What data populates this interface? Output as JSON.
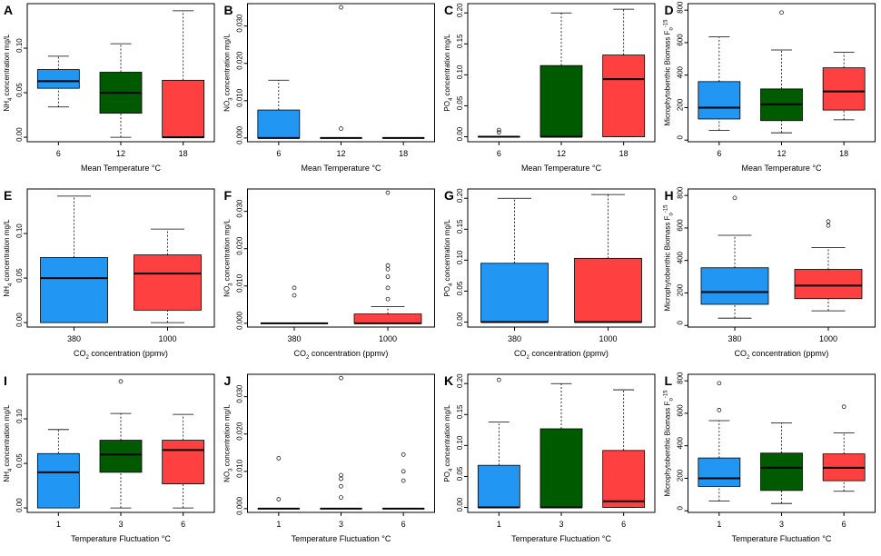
{
  "colors": {
    "blue": "#2196f3",
    "green": "#005a00",
    "red": "#ff4040"
  },
  "chart_data": [
    {
      "panel": "A",
      "type": "box",
      "xlabel": "Mean Temperature °C",
      "ylabel": "NH4 concentration mg/L",
      "ylim": [
        -0.005,
        0.15
      ],
      "yticks": [
        0,
        0.05,
        0.1
      ],
      "ytick_labels": [
        "0.00",
        "0.05",
        "0.10"
      ],
      "categories": [
        "6",
        "12",
        "18"
      ],
      "boxes": [
        {
          "color": "blue",
          "whisker_low": 0.034,
          "q1": 0.055,
          "median": 0.063,
          "q3": 0.076,
          "whisker_high": 0.091,
          "outliers": []
        },
        {
          "color": "green",
          "whisker_low": 0.0,
          "q1": 0.027,
          "median": 0.05,
          "q3": 0.073,
          "whisker_high": 0.105,
          "outliers": []
        },
        {
          "color": "red",
          "whisker_low": 0.0,
          "q1": 0.0,
          "median": 0.0,
          "q3": 0.064,
          "whisker_high": 0.142,
          "outliers": []
        }
      ]
    },
    {
      "panel": "B",
      "type": "box",
      "xlabel": "Mean Temperature °C",
      "ylabel": "NO3 concentration mg/L",
      "ylim": [
        -0.001,
        0.036
      ],
      "yticks": [
        0,
        0.01,
        0.02,
        0.03
      ],
      "ytick_labels": [
        "0.000",
        "0.010",
        "0.020",
        "0.030"
      ],
      "categories": [
        "6",
        "12",
        "18"
      ],
      "boxes": [
        {
          "color": "blue",
          "whisker_low": 0.0,
          "q1": 0.0,
          "median": 0.0,
          "q3": 0.0075,
          "whisker_high": 0.0155,
          "outliers": []
        },
        {
          "color": "blue",
          "whisker_low": 0.0,
          "q1": 0.0,
          "median": 0.0,
          "q3": 0.0,
          "whisker_high": 0.0,
          "outliers": [
            0.0025,
            0.035
          ]
        },
        {
          "color": "blue",
          "whisker_low": 0.0,
          "q1": 0.0,
          "median": 0.0,
          "q3": 0.0,
          "whisker_high": 0.0,
          "outliers": []
        }
      ]
    },
    {
      "panel": "C",
      "type": "box",
      "xlabel": "Mean Temperature °C",
      "ylabel": "PO4 concentration mg/L",
      "ylim": [
        -0.008,
        0.215
      ],
      "yticks": [
        0,
        0.05,
        0.1,
        0.15,
        0.2
      ],
      "ytick_labels": [
        "0.00",
        "0.05",
        "0.10",
        "0.15",
        "0.20"
      ],
      "categories": [
        "6",
        "12",
        "18"
      ],
      "boxes": [
        {
          "color": "blue",
          "whisker_low": 0.0,
          "q1": 0.0,
          "median": 0.0,
          "q3": 0.0,
          "whisker_high": 0.0,
          "outliers": [
            0.007,
            0.011
          ]
        },
        {
          "color": "green",
          "whisker_low": 0.0,
          "q1": 0.0,
          "median": 0.0,
          "q3": 0.115,
          "whisker_high": 0.2,
          "outliers": []
        },
        {
          "color": "red",
          "whisker_low": 0.0,
          "q1": 0.0,
          "median": 0.093,
          "q3": 0.132,
          "whisker_high": 0.206,
          "outliers": []
        }
      ]
    },
    {
      "panel": "D",
      "type": "box",
      "xlabel": "Mean Temperature °C",
      "ylabel": "Microphytobenthic Biomass F°-15",
      "ylim": [
        -10,
        840
      ],
      "yticks": [
        0,
        200,
        400,
        600,
        800
      ],
      "ytick_labels": [
        "0",
        "200",
        "400",
        "600",
        "800"
      ],
      "categories": [
        "6",
        "12",
        "18"
      ],
      "boxes": [
        {
          "color": "blue",
          "whisker_low": 60,
          "q1": 130,
          "median": 200,
          "q3": 360,
          "whisker_high": 635,
          "outliers": []
        },
        {
          "color": "green",
          "whisker_low": 45,
          "q1": 120,
          "median": 220,
          "q3": 315,
          "whisker_high": 555,
          "outliers": [
            785
          ]
        },
        {
          "color": "red",
          "whisker_low": 125,
          "q1": 185,
          "median": 300,
          "q3": 445,
          "whisker_high": 540,
          "outliers": []
        }
      ]
    },
    {
      "panel": "E",
      "type": "box",
      "xlabel": "CO2 concentration (ppmv)",
      "ylabel": "NH4 concentration mg/L",
      "ylim": [
        -0.005,
        0.15
      ],
      "yticks": [
        0,
        0.05,
        0.1
      ],
      "ytick_labels": [
        "0.00",
        "0.05",
        "0.10"
      ],
      "categories": [
        "380",
        "1000"
      ],
      "boxes": [
        {
          "color": "blue",
          "whisker_low": 0.0,
          "q1": 0.0,
          "median": 0.05,
          "q3": 0.073,
          "whisker_high": 0.142,
          "outliers": []
        },
        {
          "color": "red",
          "whisker_low": 0.0,
          "q1": 0.014,
          "median": 0.055,
          "q3": 0.076,
          "whisker_high": 0.105,
          "outliers": []
        }
      ]
    },
    {
      "panel": "F",
      "type": "box",
      "xlabel": "CO2 concentration (ppmv)",
      "ylabel": "NO3 concentration mg/L",
      "ylim": [
        -0.001,
        0.036
      ],
      "yticks": [
        0,
        0.01,
        0.02,
        0.03
      ],
      "ytick_labels": [
        "0.000",
        "0.010",
        "0.020",
        "0.030"
      ],
      "categories": [
        "380",
        "1000"
      ],
      "boxes": [
        {
          "color": "blue",
          "whisker_low": 0.0,
          "q1": 0.0,
          "median": 0.0,
          "q3": 0.0,
          "whisker_high": 0.0,
          "outliers": [
            0.0075,
            0.0095
          ]
        },
        {
          "color": "red",
          "whisker_low": 0.0,
          "q1": 0.0,
          "median": 0.0,
          "q3": 0.0025,
          "whisker_high": 0.0045,
          "outliers": [
            0.0065,
            0.0095,
            0.0125,
            0.0145,
            0.0155,
            0.035
          ]
        }
      ]
    },
    {
      "panel": "G",
      "type": "box",
      "xlabel": "CO2 concentration (ppmv)",
      "ylabel": "PO4 concentration mg/L",
      "ylim": [
        -0.008,
        0.215
      ],
      "yticks": [
        0,
        0.05,
        0.1,
        0.15,
        0.2
      ],
      "ytick_labels": [
        "0.00",
        "0.05",
        "0.10",
        "0.15",
        "0.20"
      ],
      "categories": [
        "380",
        "1000"
      ],
      "boxes": [
        {
          "color": "blue",
          "whisker_low": 0.0,
          "q1": 0.0,
          "median": 0.0,
          "q3": 0.095,
          "whisker_high": 0.2,
          "outliers": []
        },
        {
          "color": "red",
          "whisker_low": 0.0,
          "q1": 0.0,
          "median": 0.0,
          "q3": 0.103,
          "whisker_high": 0.206,
          "outliers": []
        }
      ]
    },
    {
      "panel": "H",
      "type": "box",
      "xlabel": "CO2 concentration (ppmv)",
      "ylabel": "Microphytobenthic Biomass F°-15",
      "ylim": [
        -10,
        840
      ],
      "yticks": [
        0,
        200,
        400,
        600,
        800
      ],
      "ytick_labels": [
        "0",
        "200",
        "400",
        "600",
        "800"
      ],
      "categories": [
        "380",
        "1000"
      ],
      "boxes": [
        {
          "color": "blue",
          "whisker_low": 45,
          "q1": 130,
          "median": 205,
          "q3": 355,
          "whisker_high": 555,
          "outliers": [
            785
          ]
        },
        {
          "color": "red",
          "whisker_low": 90,
          "q1": 165,
          "median": 245,
          "q3": 345,
          "whisker_high": 480,
          "outliers": [
            615,
            640
          ]
        }
      ]
    },
    {
      "panel": "I",
      "type": "box",
      "xlabel": "Temperature Fluctuation °C",
      "ylabel": "NH4 concentration mg/L",
      "ylim": [
        -0.005,
        0.15
      ],
      "yticks": [
        0,
        0.05,
        0.1
      ],
      "ytick_labels": [
        "0.00",
        "0.05",
        "0.10"
      ],
      "categories": [
        "1",
        "3",
        "6"
      ],
      "boxes": [
        {
          "color": "blue",
          "whisker_low": 0.0,
          "q1": 0.0,
          "median": 0.04,
          "q3": 0.061,
          "whisker_high": 0.088,
          "outliers": []
        },
        {
          "color": "green",
          "whisker_low": 0.0,
          "q1": 0.04,
          "median": 0.06,
          "q3": 0.076,
          "whisker_high": 0.106,
          "outliers": [
            0.142
          ]
        },
        {
          "color": "red",
          "whisker_low": 0.0,
          "q1": 0.027,
          "median": 0.065,
          "q3": 0.076,
          "whisker_high": 0.105,
          "outliers": []
        }
      ]
    },
    {
      "panel": "J",
      "type": "box",
      "xlabel": "Temperature Fluctuation °C",
      "ylabel": "NO3 concentration mg/L",
      "ylim": [
        -0.001,
        0.036
      ],
      "yticks": [
        0,
        0.01,
        0.02,
        0.03
      ],
      "ytick_labels": [
        "0.000",
        "0.010",
        "0.020",
        "0.030"
      ],
      "categories": [
        "1",
        "3",
        "6"
      ],
      "boxes": [
        {
          "color": "blue",
          "whisker_low": 0.0,
          "q1": 0.0,
          "median": 0.0,
          "q3": 0.0,
          "whisker_high": 0.0,
          "outliers": [
            0.0025,
            0.0135
          ]
        },
        {
          "color": "blue",
          "whisker_low": 0.0,
          "q1": 0.0,
          "median": 0.0,
          "q3": 0.0,
          "whisker_high": 0.0,
          "outliers": [
            0.003,
            0.006,
            0.008,
            0.009,
            0.035
          ]
        },
        {
          "color": "blue",
          "whisker_low": 0.0,
          "q1": 0.0,
          "median": 0.0,
          "q3": 0.0,
          "whisker_high": 0.0,
          "outliers": [
            0.0075,
            0.01,
            0.0145
          ]
        }
      ]
    },
    {
      "panel": "K",
      "type": "box",
      "xlabel": "Temperature Fluctuation °C",
      "ylabel": "PO4 concentration mg/L",
      "ylim": [
        -0.008,
        0.215
      ],
      "yticks": [
        0,
        0.05,
        0.1,
        0.15,
        0.2
      ],
      "ytick_labels": [
        "0.00",
        "0.05",
        "0.10",
        "0.15",
        "0.20"
      ],
      "categories": [
        "1",
        "3",
        "6"
      ],
      "boxes": [
        {
          "color": "blue",
          "whisker_low": 0.0,
          "q1": 0.0,
          "median": 0.0,
          "q3": 0.068,
          "whisker_high": 0.138,
          "outliers": [
            0.206
          ]
        },
        {
          "color": "green",
          "whisker_low": 0.0,
          "q1": 0.0,
          "median": 0.0,
          "q3": 0.127,
          "whisker_high": 0.2,
          "outliers": []
        },
        {
          "color": "red",
          "whisker_low": 0.0,
          "q1": 0.0,
          "median": 0.01,
          "q3": 0.092,
          "whisker_high": 0.19,
          "outliers": []
        }
      ]
    },
    {
      "panel": "L",
      "type": "box",
      "xlabel": "Temperature Fluctuation °C",
      "ylabel": "Microphytobenthic Biomass F°-15",
      "ylim": [
        -10,
        840
      ],
      "yticks": [
        0,
        200,
        400,
        600,
        800
      ],
      "ytick_labels": [
        "0",
        "200",
        "400",
        "600",
        "800"
      ],
      "categories": [
        "1",
        "3",
        "6"
      ],
      "boxes": [
        {
          "color": "blue",
          "whisker_low": 60,
          "q1": 150,
          "median": 200,
          "q3": 325,
          "whisker_high": 555,
          "outliers": [
            620,
            785
          ]
        },
        {
          "color": "green",
          "whisker_low": 45,
          "q1": 125,
          "median": 265,
          "q3": 355,
          "whisker_high": 540,
          "outliers": []
        },
        {
          "color": "red",
          "whisker_low": 120,
          "q1": 185,
          "median": 265,
          "q3": 350,
          "whisker_high": 480,
          "outliers": [
            640
          ]
        }
      ]
    }
  ]
}
